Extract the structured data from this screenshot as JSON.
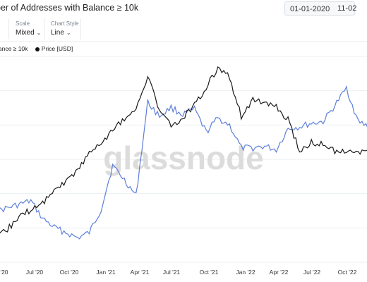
{
  "title": "ber of Addresses with Balance ≥ 10k",
  "date_from": "01-01-2020",
  "date_to": "11-02",
  "controls": {
    "scale_label": "Scale",
    "scale_value": "Mixed",
    "style_label": "Chart Style",
    "style_value": "Line"
  },
  "legend": {
    "series1": "lance ≥ 10k",
    "series2": "Price [USD]"
  },
  "watermark": "glassnode",
  "colors": {
    "addresses": "#5c7fd9",
    "price": "#1a1a1a",
    "grid": "#eceff2"
  },
  "chart_data": {
    "type": "line",
    "x_tick_labels": [
      "'20",
      "Jul '20",
      "Oct '20",
      "Jan '21",
      "Apr '21",
      "Jul '21",
      "Oct '21",
      "Jan '22",
      "Apr '22",
      "Jul '22",
      "Oct '22"
    ],
    "grid": true,
    "legend_position": "top-left",
    "x": [
      "2020-03",
      "2020-04",
      "2020-05",
      "2020-06",
      "2020-07",
      "2020-08",
      "2020-09",
      "2020-10",
      "2020-11",
      "2020-12",
      "2021-01",
      "2021-02",
      "2021-03",
      "2021-04",
      "2021-05",
      "2021-06",
      "2021-07",
      "2021-08",
      "2021-09",
      "2021-10",
      "2021-11",
      "2021-12",
      "2022-01",
      "2022-02",
      "2022-03",
      "2022-04",
      "2022-05",
      "2022-06",
      "2022-07",
      "2022-08",
      "2022-09",
      "2022-10",
      "2022-11"
    ],
    "series": [
      {
        "name": "lance ≥ 10k",
        "values": [
          0.18,
          0.2,
          0.22,
          0.24,
          0.14,
          0.09,
          0.06,
          0.03,
          0.06,
          0.19,
          0.44,
          0.36,
          0.27,
          0.8,
          0.72,
          0.77,
          0.73,
          0.76,
          0.63,
          0.71,
          0.67,
          0.54,
          0.54,
          0.55,
          0.53,
          0.65,
          0.66,
          0.68,
          0.69,
          0.78,
          0.88,
          0.69,
          0.66
        ]
      },
      {
        "name": "Price [USD]",
        "values": [
          0.02,
          0.08,
          0.15,
          0.19,
          0.23,
          0.3,
          0.35,
          0.42,
          0.51,
          0.57,
          0.64,
          0.71,
          0.75,
          0.95,
          0.76,
          0.66,
          0.71,
          0.79,
          0.88,
          1.0,
          0.94,
          0.72,
          0.82,
          0.79,
          0.77,
          0.7,
          0.52,
          0.57,
          0.56,
          0.52,
          0.53,
          0.51,
          0.52
        ]
      }
    ]
  }
}
